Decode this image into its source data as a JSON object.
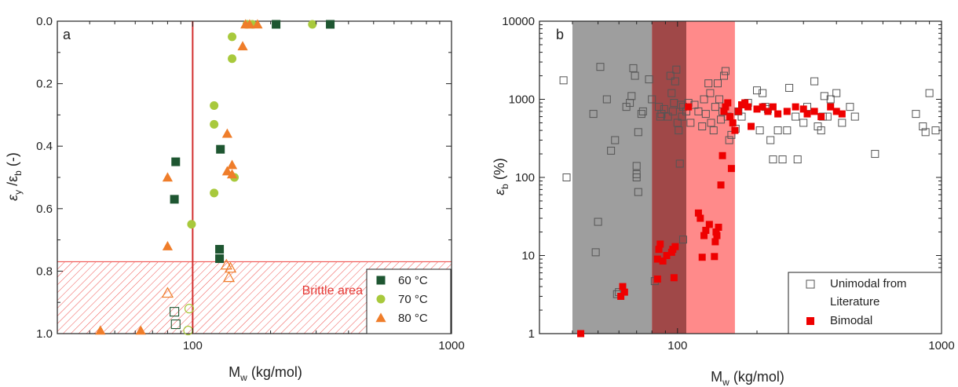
{
  "colors": {
    "series_60": "#1e5631",
    "series_70": "#a8c93c",
    "series_80": "#ef7d2a",
    "vline": "#d32f2f",
    "brittle_hatch": "#ef5350",
    "brittle_text": "#e53935",
    "gray_band": "#9e9e9e",
    "dark_band": "#a04848",
    "pink_band": "#ff8a8a",
    "unimodal": "#555555",
    "bimodal": "#ee0000"
  },
  "chart_data": [
    {
      "panel": "a",
      "type": "scatter",
      "xscale": "log",
      "xlim": [
        30,
        1000
      ],
      "ylim": [
        1.0,
        0.0
      ],
      "y_inverted": true,
      "xlabel_main": "M",
      "xlabel_sub": "w",
      "xlabel_unit": " (kg/mol)",
      "ylabel_a": "ε",
      "ylabel_a_sub": "y",
      "ylabel_b": " /ε",
      "ylabel_b_sub": "b",
      "ylabel_unit": " (-)",
      "xticks": [
        100,
        1000
      ],
      "xtick_labels": [
        "100",
        "1000"
      ],
      "yticks": [
        0.0,
        0.2,
        0.4,
        0.6,
        0.8,
        1.0
      ],
      "ytick_labels": [
        "0.0",
        "0.2",
        "0.4",
        "0.6",
        "0.8",
        "1.0"
      ],
      "vline_x": 100,
      "brittle": {
        "y_from": 0.77,
        "y_to": 1.0,
        "label": "Brittle area",
        "x_label": 230,
        "y_label": 0.9
      },
      "legend": {
        "placement": "bottom-right"
      },
      "series": [
        {
          "name": "60 °C",
          "marker": "square",
          "filled": [
            [
              86,
              0.45
            ],
            [
              85,
              0.57
            ],
            [
              128,
              0.41
            ],
            [
              127,
              0.73
            ],
            [
              127,
              0.76
            ],
            [
              210,
              0.01
            ],
            [
              340,
              0.01
            ]
          ],
          "open": [
            [
              85,
              0.93
            ],
            [
              86,
              0.97
            ]
          ]
        },
        {
          "name": "70 °C",
          "marker": "circle",
          "filled": [
            [
              99,
              0.65
            ],
            [
              121,
              0.27
            ],
            [
              121,
              0.33
            ],
            [
              121,
              0.55
            ],
            [
              142,
              0.05
            ],
            [
              142,
              0.12
            ],
            [
              145,
              0.5
            ],
            [
              162,
              0.01
            ],
            [
              170,
              0.01
            ],
            [
              290,
              0.01
            ]
          ],
          "open": [
            [
              97,
              0.92
            ],
            [
              96,
              0.99
            ]
          ]
        },
        {
          "name": "80 °C",
          "marker": "triangle",
          "filled": [
            [
              80,
              0.5
            ],
            [
              80,
              0.72
            ],
            [
              136,
              0.36
            ],
            [
              136,
              0.48
            ],
            [
              142,
              0.46
            ],
            [
              142,
              0.49
            ],
            [
              156,
              0.08
            ],
            [
              160,
              0.01
            ],
            [
              166,
              0.01
            ],
            [
              178,
              0.01
            ],
            [
              44,
              0.99
            ],
            [
              63,
              0.99
            ]
          ],
          "open": [
            [
              80,
              0.87
            ],
            [
              135,
              0.78
            ],
            [
              140,
              0.79
            ],
            [
              138,
              0.82
            ]
          ]
        }
      ]
    },
    {
      "panel": "b",
      "type": "scatter",
      "xscale": "log",
      "yscale": "log",
      "xlim": [
        30,
        1000
      ],
      "ylim": [
        1,
        10000
      ],
      "xlabel_main": "M",
      "xlabel_sub": "w",
      "xlabel_unit": " (kg/mol)",
      "ylabel_main": "ε",
      "ylabel_sub": "b",
      "ylabel_unit": " (%)",
      "xticks": [
        100,
        1000
      ],
      "xtick_labels": [
        "100",
        "1000"
      ],
      "yticks": [
        1,
        10,
        100,
        1000,
        10000
      ],
      "ytick_labels": [
        "1",
        "10",
        "100",
        "1000",
        "10000"
      ],
      "bands": [
        {
          "x_from": 40,
          "x_to": 80,
          "kind": "gray"
        },
        {
          "x_from": 80,
          "x_to": 108,
          "kind": "dark"
        },
        {
          "x_from": 108,
          "x_to": 165,
          "kind": "pink"
        }
      ],
      "legend": {
        "placement": "bottom-right"
      },
      "series": [
        {
          "name_line1": "Unimodal from",
          "name_line2": "Literature",
          "marker": "open-square",
          "points": [
            [
              37,
              1750
            ],
            [
              38,
              100
            ],
            [
              48,
              650
            ],
            [
              49,
              11
            ],
            [
              50,
              27
            ],
            [
              51,
              2600
            ],
            [
              54,
              1000
            ],
            [
              56,
              220
            ],
            [
              58,
              300
            ],
            [
              59,
              3.2
            ],
            [
              60,
              3.4
            ],
            [
              64,
              800
            ],
            [
              66,
              900
            ],
            [
              67,
              1100
            ],
            [
              68,
              2500
            ],
            [
              69,
              2000
            ],
            [
              70,
              100
            ],
            [
              70,
              110
            ],
            [
              70,
              140
            ],
            [
              71,
              380
            ],
            [
              71,
              65
            ],
            [
              73,
              650
            ],
            [
              74,
              700
            ],
            [
              78,
              1800
            ],
            [
              80,
              1000
            ],
            [
              82,
              4.7
            ],
            [
              85,
              800
            ],
            [
              86,
              600
            ],
            [
              87,
              650
            ],
            [
              89,
              750
            ],
            [
              92,
              600
            ],
            [
              94,
              2000
            ],
            [
              95,
              1200
            ],
            [
              96,
              700
            ],
            [
              97,
              900
            ],
            [
              98,
              1700
            ],
            [
              99,
              2400
            ],
            [
              100,
              500
            ],
            [
              101,
              400
            ],
            [
              102,
              150
            ],
            [
              103,
              850
            ],
            [
              104,
              600
            ],
            [
              105,
              16
            ],
            [
              105,
              800
            ],
            [
              108,
              700
            ],
            [
              110,
              900
            ],
            [
              112,
              500
            ],
            [
              116,
              850
            ],
            [
              120,
              700
            ],
            [
              124,
              450
            ],
            [
              126,
              1000
            ],
            [
              128,
              650
            ],
            [
              131,
              1600
            ],
            [
              133,
              1200
            ],
            [
              134,
              500
            ],
            [
              137,
              400
            ],
            [
              139,
              800
            ],
            [
              142,
              1600
            ],
            [
              144,
              1000
            ],
            [
              146,
              550
            ],
            [
              148,
              700
            ],
            [
              150,
              2000
            ],
            [
              152,
              2300
            ],
            [
              155,
              600
            ],
            [
              157,
              300
            ],
            [
              160,
              350
            ],
            [
              166,
              420
            ],
            [
              170,
              700
            ],
            [
              175,
              600
            ],
            [
              185,
              900
            ],
            [
              200,
              1300
            ],
            [
              205,
              400
            ],
            [
              210,
              1200
            ],
            [
              215,
              800
            ],
            [
              220,
              750
            ],
            [
              225,
              300
            ],
            [
              230,
              170
            ],
            [
              240,
              400
            ],
            [
              250,
              170
            ],
            [
              260,
              400
            ],
            [
              265,
              1400
            ],
            [
              280,
              600
            ],
            [
              285,
              170
            ],
            [
              300,
              500
            ],
            [
              310,
              800
            ],
            [
              330,
              1700
            ],
            [
              340,
              450
            ],
            [
              350,
              400
            ],
            [
              355,
              600
            ],
            [
              360,
              1100
            ],
            [
              370,
              600
            ],
            [
              380,
              1000
            ],
            [
              400,
              1200
            ],
            [
              420,
              500
            ],
            [
              450,
              800
            ],
            [
              470,
              600
            ],
            [
              560,
              200
            ],
            [
              800,
              650
            ],
            [
              850,
              450
            ],
            [
              870,
              380
            ],
            [
              900,
              1200
            ],
            [
              950,
              400
            ]
          ]
        },
        {
          "name": "Bimodal",
          "marker": "filled-square",
          "points": [
            [
              43,
              1.0
            ],
            [
              61,
              3.0
            ],
            [
              62,
              4.0
            ],
            [
              63,
              3.4
            ],
            [
              84,
              5
            ],
            [
              84,
              9
            ],
            [
              85,
              12
            ],
            [
              86,
              14
            ],
            [
              88,
              8.5
            ],
            [
              91,
              10
            ],
            [
              95,
              11
            ],
            [
              96,
              12
            ],
            [
              97,
              5.2
            ],
            [
              98,
              13
            ],
            [
              110,
              800
            ],
            [
              120,
              35
            ],
            [
              122,
              30
            ],
            [
              124,
              9.5
            ],
            [
              126,
              18
            ],
            [
              128,
              21
            ],
            [
              132,
              25
            ],
            [
              138,
              9.7
            ],
            [
              139,
              15
            ],
            [
              140,
              20
            ],
            [
              141,
              18
            ],
            [
              143,
              23
            ],
            [
              146,
              80
            ],
            [
              148,
              190
            ],
            [
              150,
              700
            ],
            [
              152,
              800
            ],
            [
              155,
              900
            ],
            [
              158,
              600
            ],
            [
              160,
              130
            ],
            [
              162,
              500
            ],
            [
              165,
              400
            ],
            [
              170,
              700
            ],
            [
              175,
              850
            ],
            [
              180,
              900
            ],
            [
              185,
              800
            ],
            [
              190,
              450
            ],
            [
              200,
              750
            ],
            [
              210,
              800
            ],
            [
              220,
              700
            ],
            [
              230,
              800
            ],
            [
              240,
              650
            ],
            [
              260,
              700
            ],
            [
              280,
              800
            ],
            [
              300,
              750
            ],
            [
              310,
              650
            ],
            [
              330,
              700
            ],
            [
              350,
              600
            ],
            [
              380,
              800
            ],
            [
              400,
              700
            ],
            [
              420,
              650
            ]
          ]
        }
      ]
    }
  ]
}
